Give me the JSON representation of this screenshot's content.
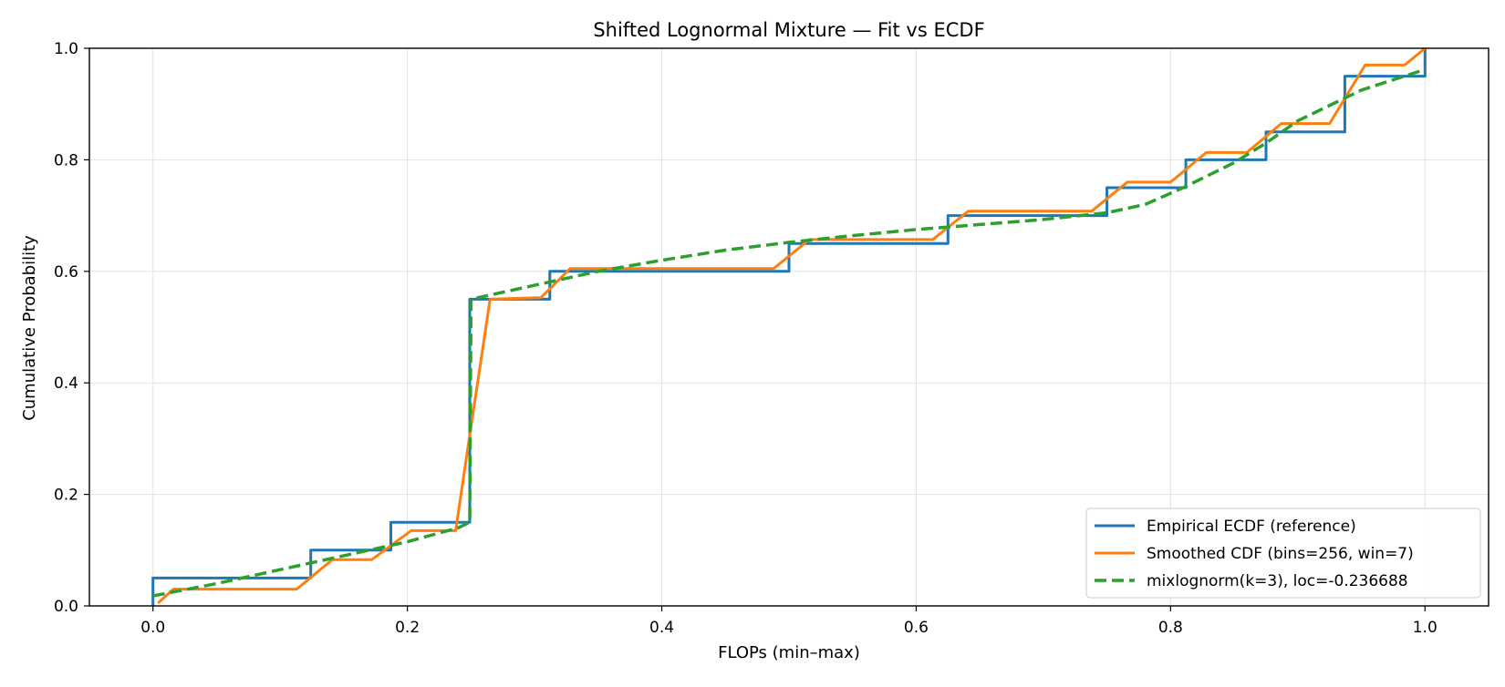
{
  "chart_data": {
    "type": "line",
    "title": "Shifted Lognormal Mixture — Fit vs ECDF",
    "xlabel": "FLOPs (min–max)",
    "ylabel": "Cumulative Probability",
    "xlim": [
      -0.05,
      1.05
    ],
    "ylim": [
      0.0,
      1.0
    ],
    "xticks": [
      0.0,
      0.2,
      0.4,
      0.6,
      0.8,
      1.0
    ],
    "yticks": [
      0.0,
      0.2,
      0.4,
      0.6,
      0.8,
      1.0
    ],
    "xtick_labels": [
      "0.0",
      "0.2",
      "0.4",
      "0.6",
      "0.8",
      "1.0"
    ],
    "ytick_labels": [
      "0.0",
      "0.2",
      "0.4",
      "0.6",
      "0.8",
      "1.0"
    ],
    "grid": true,
    "legend_position": "lower-right",
    "series": [
      {
        "name": "Empirical ECDF (reference)",
        "color": "#1f77b4",
        "style": "solid",
        "x": [
          0.0,
          0.0,
          0.124,
          0.124,
          0.187,
          0.187,
          0.249,
          0.249,
          0.312,
          0.312,
          0.5,
          0.5,
          0.625,
          0.625,
          0.75,
          0.75,
          0.812,
          0.812,
          0.875,
          0.875,
          0.937,
          0.937,
          1.0,
          1.0
        ],
        "y": [
          0.0,
          0.05,
          0.05,
          0.1,
          0.1,
          0.15,
          0.15,
          0.55,
          0.55,
          0.6,
          0.6,
          0.65,
          0.65,
          0.7,
          0.7,
          0.75,
          0.75,
          0.8,
          0.8,
          0.85,
          0.85,
          0.95,
          0.95,
          1.0
        ]
      },
      {
        "name": "Smoothed CDF (bins=256, win=7)",
        "color": "#ff7f0e",
        "style": "solid",
        "x": [
          0.004,
          0.016,
          0.113,
          0.141,
          0.172,
          0.203,
          0.238,
          0.246,
          0.265,
          0.305,
          0.328,
          0.488,
          0.516,
          0.613,
          0.641,
          0.738,
          0.766,
          0.8,
          0.828,
          0.86,
          0.887,
          0.925,
          0.953,
          0.984,
          1.0
        ],
        "y": [
          0.005,
          0.03,
          0.03,
          0.083,
          0.083,
          0.135,
          0.135,
          0.26,
          0.55,
          0.553,
          0.605,
          0.605,
          0.657,
          0.657,
          0.708,
          0.708,
          0.76,
          0.76,
          0.813,
          0.813,
          0.865,
          0.865,
          0.97,
          0.97,
          1.0
        ]
      },
      {
        "name": "mixlognorm(k=3), loc=-0.236688",
        "color": "#2ca02c",
        "style": "dashed",
        "x": [
          0.0,
          0.05,
          0.1,
          0.15,
          0.2,
          0.24,
          0.249,
          0.25,
          0.3,
          0.35,
          0.4,
          0.45,
          0.5,
          0.55,
          0.6,
          0.65,
          0.7,
          0.75,
          0.78,
          0.81,
          0.85,
          0.875,
          0.9,
          0.95,
          1.0
        ],
        "y": [
          0.018,
          0.04,
          0.065,
          0.09,
          0.115,
          0.14,
          0.15,
          0.55,
          0.575,
          0.6,
          0.62,
          0.638,
          0.652,
          0.664,
          0.675,
          0.684,
          0.693,
          0.705,
          0.72,
          0.75,
          0.795,
          0.83,
          0.87,
          0.925,
          0.962
        ]
      }
    ]
  }
}
